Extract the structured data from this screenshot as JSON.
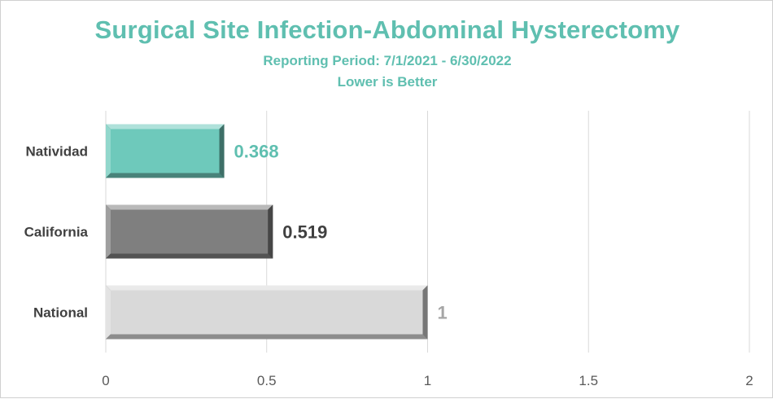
{
  "chart_data": {
    "type": "bar",
    "orientation": "horizontal",
    "title": "Surgical Site Infection-Abdominal Hysterectomy",
    "subtitle": "Reporting Period: 7/1/2021 - 6/30/2022",
    "note": "Lower is Better",
    "categories": [
      "Natividad",
      "California",
      "National"
    ],
    "values": [
      0.368,
      0.519,
      1
    ],
    "value_labels": [
      "0.368",
      "0.519",
      "1"
    ],
    "bar_colors": [
      "#6ec9bb",
      "#7f7f7f",
      "#d9d9d9"
    ],
    "label_colors": [
      "#5fbfb0",
      "#404040",
      "#a6a6a6"
    ],
    "xlim": [
      0,
      2
    ],
    "xticks": [
      0,
      0.5,
      1,
      1.5,
      2
    ],
    "xtick_labels": [
      "0",
      "0.5",
      "1",
      "1.5",
      "2"
    ],
    "grid": true,
    "legend": "none"
  }
}
